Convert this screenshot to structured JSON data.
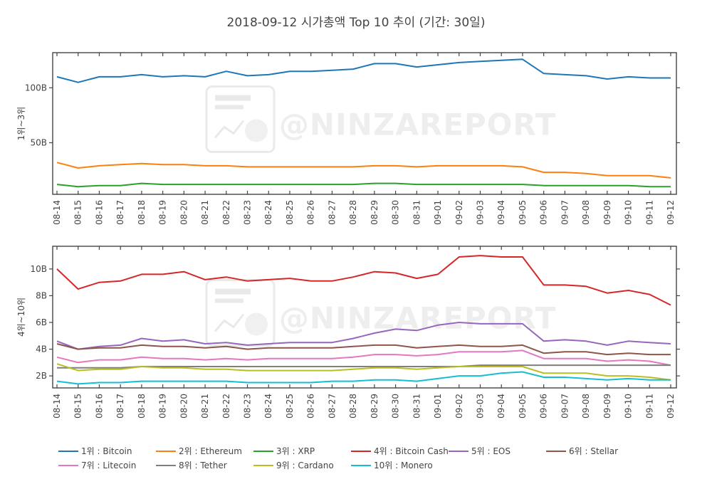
{
  "chart_data": {
    "type": "line",
    "title": "2018-09-12 시가총액 Top 10 추이 (기간: 30일)",
    "watermark": "@NINZAREPORT",
    "x": [
      "08-14",
      "08-15",
      "08-16",
      "08-17",
      "08-18",
      "08-19",
      "08-20",
      "08-21",
      "08-22",
      "08-23",
      "08-24",
      "08-25",
      "08-26",
      "08-27",
      "08-28",
      "08-29",
      "08-30",
      "08-31",
      "09-01",
      "09-02",
      "09-03",
      "09-04",
      "09-05",
      "09-06",
      "09-07",
      "09-08",
      "09-09",
      "09-10",
      "09-11",
      "09-12"
    ],
    "panels": [
      {
        "ylabel": "1위~3위",
        "ylim": [
          3,
          132
        ],
        "yticks": [
          {
            "value": 50,
            "label": "50B"
          },
          {
            "value": 100,
            "label": "100B"
          }
        ],
        "series": [
          {
            "name": "1위 : Bitcoin",
            "color": "#1f77b4",
            "values": [
              110,
              105,
              110,
              110,
              112,
              110,
              111,
              110,
              115,
              111,
              112,
              115,
              115,
              116,
              117,
              122,
              122,
              119,
              121,
              123,
              124,
              125,
              126,
              113,
              112,
              111,
              108,
              110,
              109,
              109
            ]
          },
          {
            "name": "2위 : Ethereum",
            "color": "#ff7f0e",
            "values": [
              32,
              27,
              29,
              30,
              31,
              30,
              30,
              29,
              29,
              28,
              28,
              28,
              28,
              28,
              28,
              29,
              29,
              28,
              29,
              29,
              29,
              29,
              28,
              23,
              23,
              22,
              20,
              20,
              20,
              18
            ]
          },
          {
            "name": "3위 : XRP",
            "color": "#2ca02c",
            "values": [
              12,
              10,
              11,
              11,
              13,
              12,
              12,
              12,
              12,
              12,
              12,
              12,
              12,
              12,
              12,
              13,
              13,
              12,
              12,
              12,
              12,
              12,
              12,
              11,
              11,
              11,
              11,
              11,
              10,
              10
            ]
          }
        ]
      },
      {
        "ylabel": "4위~10위",
        "ylim": [
          1.1,
          11.7
        ],
        "yticks": [
          {
            "value": 2,
            "label": "2B"
          },
          {
            "value": 4,
            "label": "4B"
          },
          {
            "value": 6,
            "label": "6B"
          },
          {
            "value": 8,
            "label": "8B"
          },
          {
            "value": 10,
            "label": "10B"
          }
        ],
        "series": [
          {
            "name": "4위 : Bitcoin Cash",
            "color": "#d62728",
            "values": [
              10.0,
              8.5,
              9.0,
              9.1,
              9.6,
              9.6,
              9.8,
              9.2,
              9.4,
              9.1,
              9.2,
              9.3,
              9.1,
              9.1,
              9.4,
              9.8,
              9.7,
              9.3,
              9.6,
              10.9,
              11.0,
              10.9,
              10.9,
              8.8,
              8.8,
              8.7,
              8.2,
              8.4,
              8.1,
              7.3
            ]
          },
          {
            "name": "5위 : EOS",
            "color": "#9467bd",
            "values": [
              4.6,
              4.0,
              4.2,
              4.3,
              4.8,
              4.6,
              4.7,
              4.4,
              4.5,
              4.3,
              4.4,
              4.5,
              4.5,
              4.5,
              4.8,
              5.2,
              5.5,
              5.4,
              5.8,
              6.0,
              5.9,
              5.9,
              5.9,
              4.6,
              4.7,
              4.6,
              4.3,
              4.6,
              4.5,
              4.4
            ]
          },
          {
            "name": "6위 : Stellar",
            "color": "#8c564b",
            "values": [
              4.4,
              4.0,
              4.1,
              4.1,
              4.3,
              4.2,
              4.2,
              4.1,
              4.2,
              4.0,
              4.1,
              4.1,
              4.1,
              4.1,
              4.2,
              4.3,
              4.3,
              4.1,
              4.2,
              4.3,
              4.2,
              4.2,
              4.3,
              3.7,
              3.8,
              3.8,
              3.6,
              3.7,
              3.6,
              3.6
            ]
          },
          {
            "name": "7위 : Litecoin",
            "color": "#e377c2",
            "values": [
              3.4,
              3.0,
              3.2,
              3.2,
              3.4,
              3.3,
              3.3,
              3.2,
              3.3,
              3.2,
              3.3,
              3.3,
              3.3,
              3.3,
              3.4,
              3.6,
              3.6,
              3.5,
              3.6,
              3.8,
              3.8,
              3.8,
              3.9,
              3.3,
              3.3,
              3.3,
              3.1,
              3.2,
              3.1,
              2.8
            ]
          },
          {
            "name": "8위 : Tether",
            "color": "#7f7f7f",
            "values": [
              2.6,
              2.6,
              2.6,
              2.6,
              2.7,
              2.7,
              2.7,
              2.7,
              2.7,
              2.7,
              2.7,
              2.7,
              2.7,
              2.7,
              2.7,
              2.7,
              2.7,
              2.7,
              2.7,
              2.7,
              2.8,
              2.8,
              2.8,
              2.8,
              2.8,
              2.8,
              2.8,
              2.8,
              2.8,
              2.8
            ]
          },
          {
            "name": "9위 : Cardano",
            "color": "#bcbd22",
            "values": [
              2.9,
              2.4,
              2.5,
              2.5,
              2.7,
              2.6,
              2.6,
              2.5,
              2.5,
              2.4,
              2.4,
              2.4,
              2.4,
              2.4,
              2.5,
              2.6,
              2.6,
              2.5,
              2.6,
              2.7,
              2.7,
              2.7,
              2.7,
              2.2,
              2.2,
              2.2,
              2.0,
              2.0,
              1.9,
              1.7
            ]
          },
          {
            "name": "10위 : Monero",
            "color": "#17becf",
            "values": [
              1.6,
              1.4,
              1.5,
              1.5,
              1.6,
              1.6,
              1.6,
              1.6,
              1.6,
              1.5,
              1.5,
              1.5,
              1.5,
              1.6,
              1.6,
              1.7,
              1.7,
              1.6,
              1.8,
              2.0,
              2.0,
              2.2,
              2.3,
              1.9,
              1.9,
              1.8,
              1.7,
              1.8,
              1.7,
              1.7
            ]
          }
        ]
      }
    ]
  }
}
